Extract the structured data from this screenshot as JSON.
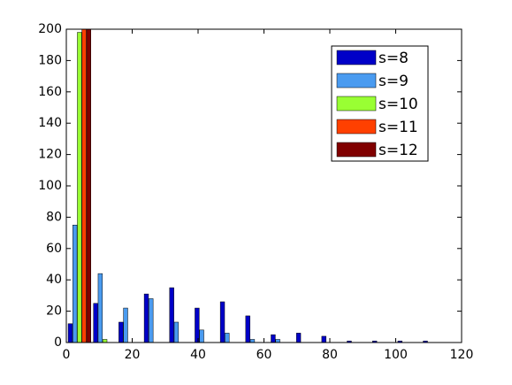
{
  "chart_data": {
    "type": "grouped_bar",
    "x": [
      4,
      11.7,
      19.4,
      27.1,
      34.8,
      42.5,
      50.2,
      57.9,
      65.6,
      73.3,
      81,
      88.7,
      96.4,
      104.1,
      111.8
    ],
    "series": [
      {
        "name": "s=8",
        "color": "#0000c8",
        "values": [
          12,
          25,
          13,
          31,
          35,
          22,
          26,
          17,
          5,
          6,
          4,
          1,
          1,
          1,
          1
        ]
      },
      {
        "name": "s=9",
        "color": "#4a9bf0",
        "values": [
          75,
          44,
          22,
          28,
          13,
          8,
          6,
          2,
          2,
          0,
          0,
          0,
          0,
          0,
          0
        ]
      },
      {
        "name": "s=10",
        "color": "#99ff33",
        "values": [
          198,
          2,
          0,
          0,
          0,
          0,
          0,
          0,
          0,
          0,
          0,
          0,
          0,
          0,
          0
        ]
      },
      {
        "name": "s=11",
        "color": "#ff4000",
        "values": [
          200,
          0,
          0,
          0,
          0,
          0,
          0,
          0,
          0,
          0,
          0,
          0,
          0,
          0,
          0
        ]
      },
      {
        "name": "s=12",
        "color": "#800000",
        "values": [
          200,
          0,
          0,
          0,
          0,
          0,
          0,
          0,
          0,
          0,
          0,
          0,
          0,
          0,
          0
        ]
      }
    ],
    "xlim": [
      0,
      120
    ],
    "xticks": [
      0,
      20,
      40,
      60,
      80,
      100,
      120
    ],
    "ylim": [
      0,
      200
    ],
    "yticks": [
      0,
      20,
      40,
      60,
      80,
      100,
      120,
      140,
      160,
      180,
      200
    ],
    "legend": "top-right"
  }
}
